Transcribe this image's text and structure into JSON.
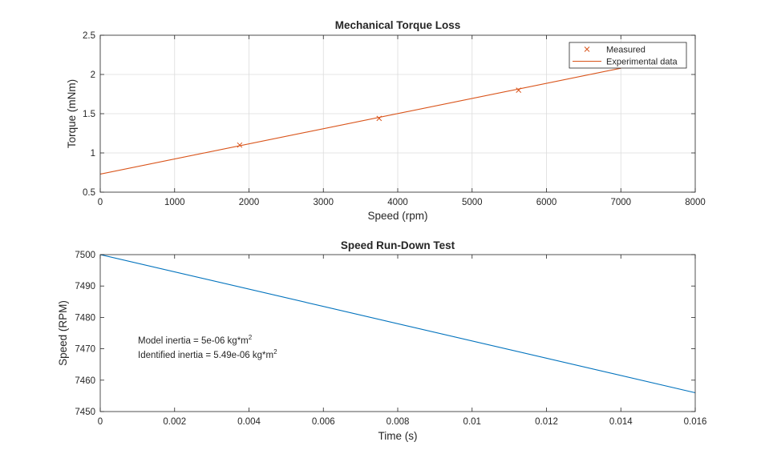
{
  "chart_data": [
    {
      "type": "line",
      "title": "Mechanical Torque Loss",
      "xlabel": "Speed (rpm)",
      "ylabel": "Torque (mNm)",
      "xlim": [
        0,
        8000
      ],
      "ylim": [
        0.5,
        2.5
      ],
      "xticks": [
        "0",
        "1000",
        "2000",
        "3000",
        "4000",
        "5000",
        "6000",
        "7000",
        "8000"
      ],
      "yticks": [
        "0.5",
        "1",
        "1.5",
        "2",
        "2.5"
      ],
      "grid": true,
      "legend_position": "top-right",
      "series": [
        {
          "name": "Measured",
          "style": "markers-x",
          "color": "#d95319",
          "x": [
            1875,
            3750,
            5625
          ],
          "y": [
            1.1,
            1.44,
            1.8
          ]
        },
        {
          "name": "Experimental data",
          "style": "line",
          "color": "#d95319",
          "x": [
            0,
            7000
          ],
          "y": [
            0.73,
            2.08
          ]
        }
      ]
    },
    {
      "type": "line",
      "title": "Speed Run-Down Test",
      "xlabel": "Time (s)",
      "ylabel": "Speed (RPM)",
      "xlim": [
        0,
        0.016
      ],
      "ylim": [
        7450,
        7500
      ],
      "xticks": [
        "0",
        "0.002",
        "0.004",
        "0.006",
        "0.008",
        "0.01",
        "0.012",
        "0.014",
        "0.016"
      ],
      "yticks": [
        "7450",
        "7460",
        "7470",
        "7480",
        "7490",
        "7500"
      ],
      "grid": false,
      "series": [
        {
          "style": "line",
          "color": "#0072bd",
          "x": [
            0,
            0.016
          ],
          "y": [
            7500,
            7456
          ]
        }
      ],
      "annotations": [
        {
          "text": "Model  inertia  =  5e-06  kg*m",
          "superscript": "2"
        },
        {
          "text": "Identified  inertia  =  5.49e-06  kg*m",
          "superscript": "2"
        }
      ]
    }
  ]
}
